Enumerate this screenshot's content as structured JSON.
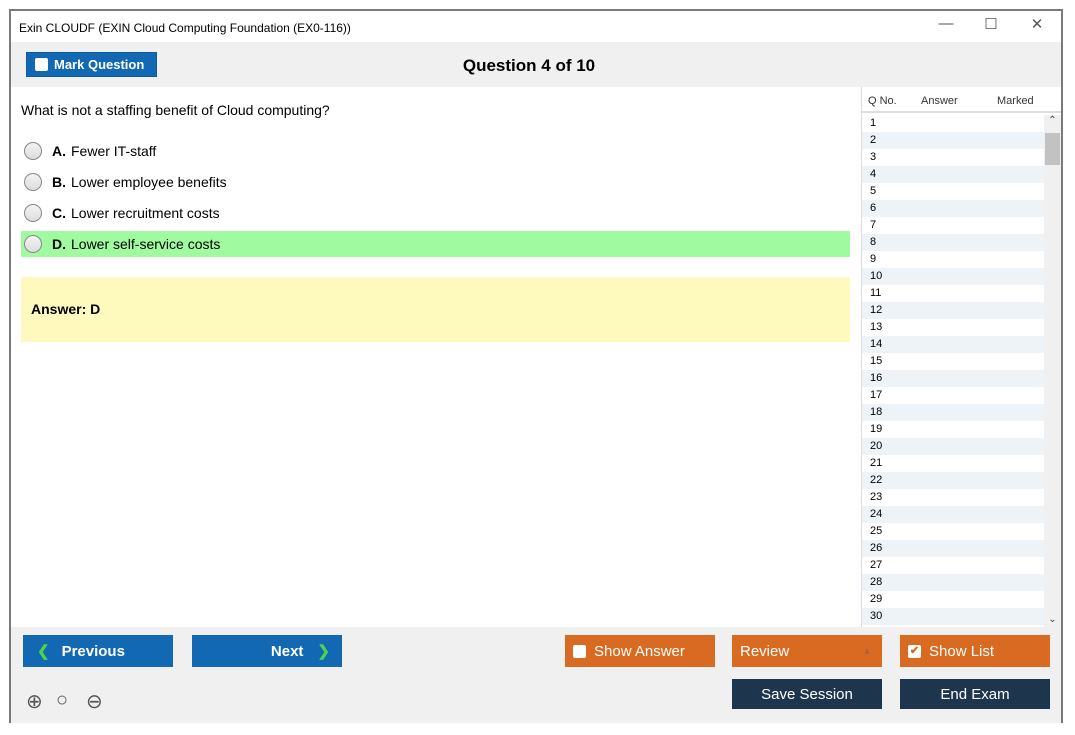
{
  "window": {
    "title": "Exin CLOUDF (EXIN Cloud Computing Foundation (EX0-116))",
    "minimize": "—",
    "maximize": "☐",
    "close": "✕"
  },
  "toolbar": {
    "mark_label": "Mark Question",
    "question_counter": "Question 4 of 10"
  },
  "question": {
    "text": "What is not a staffing benefit of Cloud computing?",
    "options": [
      {
        "letter": "A.",
        "text": "Fewer IT-staff"
      },
      {
        "letter": "B.",
        "text": "Lower employee benefits"
      },
      {
        "letter": "C.",
        "text": "Lower recruitment costs"
      },
      {
        "letter": "D.",
        "text": "Lower self-service costs",
        "highlighted": true
      }
    ],
    "answer": "Answer: D"
  },
  "list": {
    "headers": [
      "Q No.",
      "Answer",
      "Marked"
    ],
    "rows": [
      "1",
      "2",
      "3",
      "4",
      "5",
      "6",
      "7",
      "8",
      "9",
      "10",
      "11",
      "12",
      "13",
      "14",
      "15",
      "16",
      "17",
      "18",
      "19",
      "20",
      "21",
      "22",
      "23",
      "24",
      "25",
      "26",
      "27",
      "28",
      "29",
      "30"
    ]
  },
  "buttons": {
    "previous": "Previous",
    "next": "Next",
    "show_answer": "Show Answer",
    "review": "Review",
    "show_list": "Show List",
    "save_session": "Save Session",
    "end_exam": "End Exam"
  },
  "colors": {
    "accent_blue": "#1368b3",
    "orange": "#d86b21",
    "navy": "#1d364d",
    "correct": "#a0fba0",
    "answer_bg": "#fef9bd"
  }
}
